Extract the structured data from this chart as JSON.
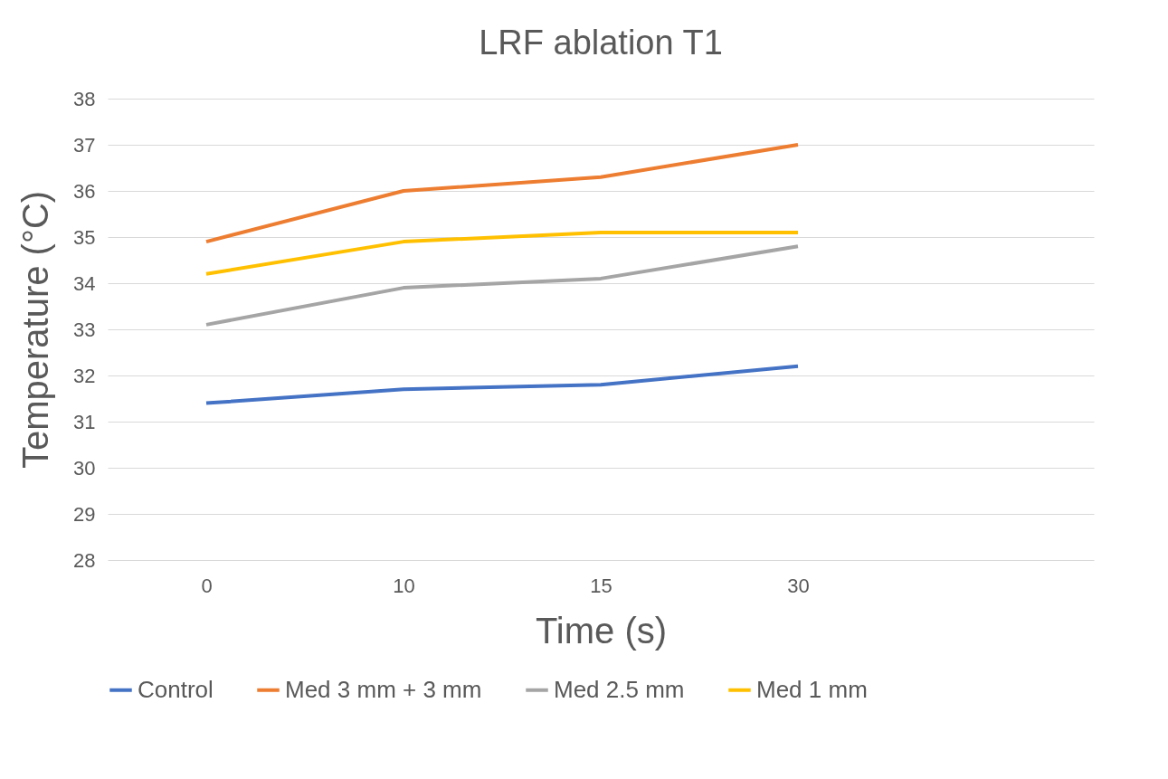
{
  "chart_data": {
    "type": "line",
    "title": "LRF ablation T1",
    "xlabel": "Time (s)",
    "ylabel": "Temperature (°C)",
    "categories": [
      "0",
      "10",
      "15",
      "30",
      null
    ],
    "series": [
      {
        "name": "Control",
        "color": "#4472c4",
        "values": [
          31.4,
          31.7,
          31.8,
          32.2,
          null
        ]
      },
      {
        "name": "Med 3 mm + 3 mm",
        "color": "#ed7d31",
        "values": [
          34.9,
          36.0,
          36.3,
          37.0,
          null
        ]
      },
      {
        "name": "Med 2.5 mm",
        "color": "#a5a5a5",
        "values": [
          33.1,
          33.9,
          34.1,
          34.8,
          null
        ]
      },
      {
        "name": "Med 1 mm",
        "color": "#ffc000",
        "values": [
          34.2,
          34.9,
          35.1,
          35.1,
          null
        ]
      }
    ],
    "ylim": [
      28,
      38
    ],
    "yticks": [
      28,
      29,
      30,
      31,
      32,
      33,
      34,
      35,
      36,
      37,
      38
    ],
    "grid": "y",
    "legend": "bottom",
    "marker": "none",
    "line_style": "solid"
  }
}
